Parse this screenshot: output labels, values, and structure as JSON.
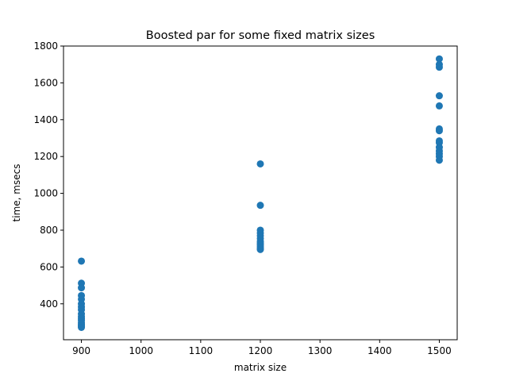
{
  "chart_data": {
    "type": "scatter",
    "title": "Boosted par for some fixed matrix sizes",
    "xlabel": "matrix size",
    "ylabel": "time, msecs",
    "xlim": [
      870,
      1530
    ],
    "ylim": [
      205,
      1800
    ],
    "x_ticks": [
      900,
      1000,
      1100,
      1200,
      1300,
      1400,
      1500
    ],
    "y_ticks": [
      400,
      600,
      800,
      1000,
      1200,
      1400,
      1600,
      1800
    ],
    "grid": false,
    "marker_color": "#1f77b4",
    "series": [
      {
        "x": [
          900,
          900,
          900,
          900,
          900,
          900,
          900,
          900,
          900,
          900,
          900,
          900,
          900,
          900,
          900,
          900,
          900,
          1200,
          1200,
          1200,
          1200,
          1200,
          1200,
          1200,
          1200,
          1200,
          1200,
          1200,
          1200,
          1500,
          1500,
          1500,
          1500,
          1500,
          1500,
          1500,
          1500,
          1500,
          1500,
          1500,
          1500,
          1500,
          1500
        ],
        "y": [
          632,
          512,
          487,
          445,
          425,
          400,
          383,
          368,
          345,
          330,
          320,
          310,
          298,
          290,
          283,
          278,
          272,
          1160,
          935,
          800,
          785,
          770,
          755,
          740,
          730,
          720,
          710,
          700,
          695,
          1730,
          1700,
          1685,
          1530,
          1475,
          1350,
          1340,
          1285,
          1275,
          1250,
          1230,
          1215,
          1200,
          1180
        ]
      }
    ]
  }
}
